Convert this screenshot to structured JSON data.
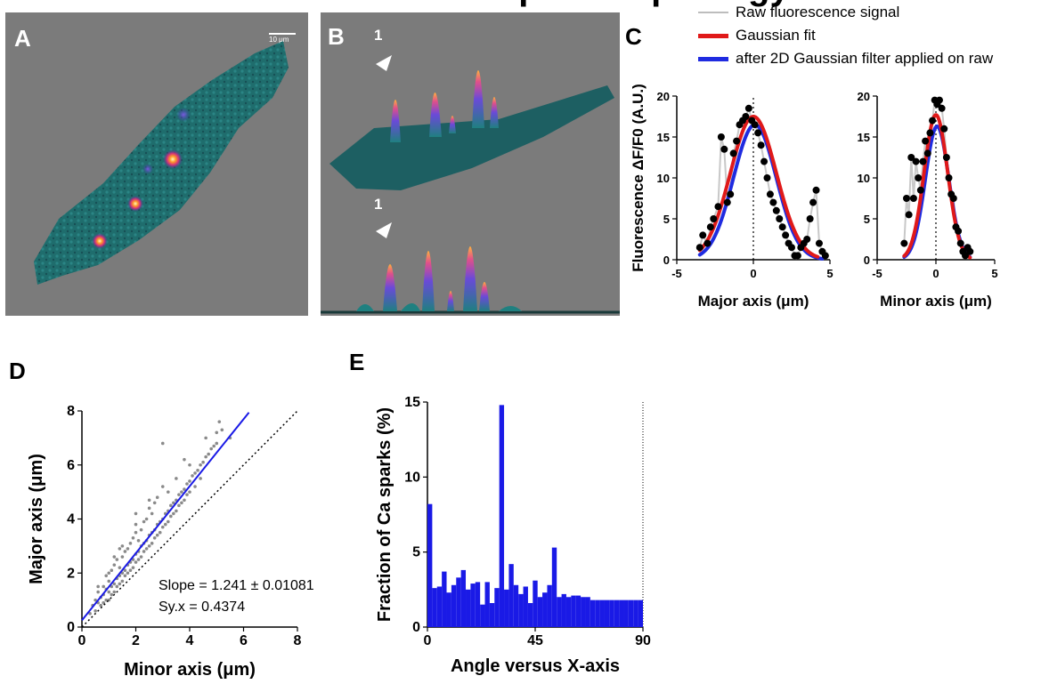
{
  "header_fragment": "spar  morphology",
  "panels": {
    "A": {
      "letter": "A",
      "scale_bar": "10 μm"
    },
    "B": {
      "letter": "B",
      "marker_top": "1",
      "marker_bottom": "1"
    },
    "C": {
      "letter": "C"
    },
    "D": {
      "letter": "D"
    },
    "E": {
      "letter": "E"
    }
  },
  "legend": {
    "items": [
      {
        "label": "Raw fluorescence  signal",
        "color": "#bdbdbd"
      },
      {
        "label": "Gaussian fit",
        "color": "#e01919"
      },
      {
        "label": "after 2D Gaussian filter applied  on raw",
        "color": "#1f2be0"
      }
    ]
  },
  "colors": {
    "raw": "#c8c8c8",
    "dots": "#000000",
    "fit": "#e01919",
    "filtered": "#1f2be0",
    "bars": "#1a1ae6",
    "scatter": "#8a8a8a",
    "regression": "#1a1ae6"
  },
  "chart_data": [
    {
      "id": "C-major",
      "type": "line",
      "ylabel": "Fluorescence ΔF/F0 (A.U.)",
      "xlabel": "Major axis (μm)",
      "xlim": [
        -5,
        5
      ],
      "ylim": [
        0,
        20
      ],
      "xticks": [
        "-5",
        "0",
        "5"
      ],
      "yticks": [
        "0",
        "5",
        "10",
        "15",
        "20"
      ],
      "series": [
        {
          "name": "Raw fluorescence  signal",
          "x": [
            -3.5,
            -3.3,
            -3.0,
            -2.8,
            -2.6,
            -2.3,
            -2.1,
            -1.9,
            -1.7,
            -1.5,
            -1.3,
            -1.1,
            -0.9,
            -0.7,
            -0.5,
            -0.3,
            -0.1,
            0.1,
            0.3,
            0.5,
            0.7,
            0.9,
            1.1,
            1.3,
            1.5,
            1.7,
            1.9,
            2.1,
            2.3,
            2.5,
            2.7,
            2.9,
            3.1,
            3.3,
            3.5,
            3.7,
            3.9,
            4.1,
            4.3,
            4.5,
            4.7
          ],
          "y": [
            1.5,
            3.0,
            2.0,
            4.0,
            5.0,
            6.5,
            15.0,
            13.5,
            7.0,
            8.0,
            13.0,
            14.5,
            16.5,
            17.0,
            17.5,
            18.5,
            17.0,
            16.5,
            15.5,
            14.0,
            12.0,
            10.0,
            8.0,
            7.0,
            6.0,
            5.0,
            4.0,
            3.0,
            2.0,
            1.5,
            0.5,
            0.5,
            1.5,
            2.0,
            2.5,
            5.0,
            7.0,
            8.5,
            2.0,
            1.0,
            0.5
          ]
        },
        {
          "name": "Gaussian fit",
          "fn": "gauss",
          "amp": 17.5,
          "mu": 0,
          "sigma": 1.5,
          "x_range": [
            -3.5,
            4.2
          ]
        },
        {
          "name": "after 2D Gaussian filter applied  on raw",
          "fn": "gauss",
          "amp": 16.5,
          "mu": 0.1,
          "sigma": 1.4,
          "x_range": [
            -3.5,
            4.5
          ]
        }
      ]
    },
    {
      "id": "C-minor",
      "type": "line",
      "xlabel": "Minor axis (μm)",
      "xlim": [
        -5,
        5
      ],
      "ylim": [
        0,
        20
      ],
      "xticks": [
        "-5",
        "0",
        "5"
      ],
      "yticks": [
        "0",
        "5",
        "10",
        "15",
        "20"
      ],
      "series": [
        {
          "name": "Raw fluorescence  signal",
          "x": [
            -2.7,
            -2.5,
            -2.3,
            -2.1,
            -1.9,
            -1.7,
            -1.5,
            -1.3,
            -1.1,
            -0.9,
            -0.7,
            -0.5,
            -0.3,
            -0.1,
            0.1,
            0.3,
            0.5,
            0.7,
            0.9,
            1.1,
            1.3,
            1.5,
            1.7,
            1.9,
            2.1,
            2.3,
            2.5,
            2.7,
            2.9
          ],
          "y": [
            2.0,
            7.5,
            5.5,
            12.5,
            7.5,
            12.0,
            10.0,
            8.5,
            12.0,
            14.5,
            13.0,
            15.5,
            17.0,
            19.5,
            19.0,
            19.5,
            18.5,
            16.0,
            12.5,
            10.0,
            8.0,
            7.5,
            4.0,
            3.5,
            2.0,
            1.0,
            0.5,
            1.5,
            1.0
          ]
        },
        {
          "name": "Gaussian fit",
          "fn": "gauss",
          "amp": 17.7,
          "mu": 0,
          "sigma": 1.0,
          "x_range": [
            -2.7,
            2.9
          ]
        },
        {
          "name": "after 2D Gaussian filter applied  on raw",
          "fn": "gauss",
          "amp": 16.3,
          "mu": 0.1,
          "sigma": 1.0,
          "x_range": [
            -2.7,
            2.9
          ]
        }
      ]
    },
    {
      "id": "D",
      "type": "scatter",
      "xlabel": "Minor axis (μm)",
      "ylabel": "Major axis (μm)",
      "xlim": [
        0,
        8
      ],
      "ylim": [
        0,
        8
      ],
      "xticks": [
        "0",
        "2",
        "4",
        "6",
        "8"
      ],
      "yticks": [
        "0",
        "2",
        "4",
        "6",
        "8"
      ],
      "regression": {
        "slope": 1.241,
        "intercept": 0.25,
        "x_range": [
          0,
          6.2
        ]
      },
      "identity_line": true,
      "annotations": [
        "Slope = 1.241 ± 0.01081",
        "Sy.x = 0.4374"
      ],
      "points": [
        [
          0.3,
          0.5
        ],
        [
          0.4,
          0.8
        ],
        [
          0.5,
          0.6
        ],
        [
          0.5,
          1.0
        ],
        [
          0.6,
          0.9
        ],
        [
          0.6,
          1.3
        ],
        [
          0.7,
          1.1
        ],
        [
          0.7,
          0.8
        ],
        [
          0.8,
          1.5
        ],
        [
          0.8,
          1.2
        ],
        [
          0.8,
          0.9
        ],
        [
          0.9,
          1.4
        ],
        [
          0.9,
          1.0
        ],
        [
          1.0,
          1.7
        ],
        [
          1.0,
          1.3
        ],
        [
          1.0,
          1.0
        ],
        [
          1.0,
          2.0
        ],
        [
          1.1,
          1.5
        ],
        [
          1.1,
          1.2
        ],
        [
          1.1,
          2.1
        ],
        [
          1.2,
          1.6
        ],
        [
          1.2,
          1.3
        ],
        [
          1.2,
          2.3
        ],
        [
          1.3,
          1.8
        ],
        [
          1.3,
          1.5
        ],
        [
          1.3,
          2.5
        ],
        [
          1.4,
          1.9
        ],
        [
          1.4,
          1.6
        ],
        [
          1.4,
          2.2
        ],
        [
          1.5,
          2.0
        ],
        [
          1.5,
          1.7
        ],
        [
          1.5,
          2.6
        ],
        [
          1.5,
          3.0
        ],
        [
          1.6,
          2.1
        ],
        [
          1.6,
          1.9
        ],
        [
          1.6,
          2.8
        ],
        [
          1.7,
          2.3
        ],
        [
          1.7,
          2.0
        ],
        [
          1.7,
          2.9
        ],
        [
          1.8,
          2.4
        ],
        [
          1.8,
          2.1
        ],
        [
          1.8,
          3.1
        ],
        [
          1.9,
          2.5
        ],
        [
          1.9,
          2.2
        ],
        [
          1.9,
          3.3
        ],
        [
          2.0,
          2.7
        ],
        [
          2.0,
          2.4
        ],
        [
          2.0,
          3.5
        ],
        [
          2.0,
          4.2
        ],
        [
          2.1,
          2.8
        ],
        [
          2.1,
          2.5
        ],
        [
          2.1,
          3.2
        ],
        [
          2.2,
          3.0
        ],
        [
          2.2,
          2.6
        ],
        [
          2.2,
          3.6
        ],
        [
          2.3,
          3.1
        ],
        [
          2.3,
          2.8
        ],
        [
          2.3,
          3.9
        ],
        [
          2.4,
          3.2
        ],
        [
          2.4,
          2.9
        ],
        [
          2.4,
          4.0
        ],
        [
          2.5,
          3.4
        ],
        [
          2.5,
          3.0
        ],
        [
          2.5,
          4.4
        ],
        [
          2.6,
          3.5
        ],
        [
          2.6,
          3.1
        ],
        [
          2.6,
          4.2
        ],
        [
          2.7,
          3.6
        ],
        [
          2.7,
          3.3
        ],
        [
          2.8,
          3.8
        ],
        [
          2.8,
          3.4
        ],
        [
          2.8,
          4.8
        ],
        [
          2.9,
          3.9
        ],
        [
          2.9,
          3.5
        ],
        [
          3.0,
          4.0
        ],
        [
          3.0,
          3.7
        ],
        [
          3.0,
          5.2
        ],
        [
          3.0,
          6.8
        ],
        [
          3.1,
          4.2
        ],
        [
          3.1,
          3.8
        ],
        [
          3.2,
          4.3
        ],
        [
          3.2,
          3.9
        ],
        [
          3.2,
          5.0
        ],
        [
          3.3,
          4.5
        ],
        [
          3.3,
          4.1
        ],
        [
          3.4,
          4.6
        ],
        [
          3.4,
          4.2
        ],
        [
          3.5,
          4.7
        ],
        [
          3.5,
          4.3
        ],
        [
          3.5,
          5.5
        ],
        [
          3.6,
          4.9
        ],
        [
          3.6,
          4.5
        ],
        [
          3.7,
          5.0
        ],
        [
          3.7,
          4.6
        ],
        [
          3.8,
          5.1
        ],
        [
          3.8,
          4.7
        ],
        [
          3.9,
          5.3
        ],
        [
          3.9,
          4.9
        ],
        [
          4.0,
          5.4
        ],
        [
          4.0,
          5.0
        ],
        [
          4.0,
          6.0
        ],
        [
          4.1,
          5.6
        ],
        [
          4.2,
          5.7
        ],
        [
          4.2,
          5.2
        ],
        [
          4.3,
          5.8
        ],
        [
          4.4,
          6.0
        ],
        [
          4.4,
          5.5
        ],
        [
          4.5,
          6.1
        ],
        [
          4.6,
          6.3
        ],
        [
          4.7,
          6.4
        ],
        [
          4.8,
          6.6
        ],
        [
          4.9,
          6.7
        ],
        [
          5.0,
          6.8
        ],
        [
          5.0,
          7.2
        ],
        [
          5.2,
          7.3
        ],
        [
          5.5,
          7.0
        ],
        [
          5.1,
          7.6
        ],
        [
          4.6,
          7.0
        ],
        [
          3.8,
          6.2
        ],
        [
          2.7,
          4.6
        ],
        [
          1.2,
          2.6
        ],
        [
          0.9,
          1.9
        ],
        [
          0.6,
          1.5
        ],
        [
          1.4,
          2.9
        ],
        [
          2.0,
          3.8
        ],
        [
          2.5,
          4.7
        ]
      ]
    },
    {
      "id": "E",
      "type": "bar",
      "xlabel": "Angle versus X-axis",
      "ylabel": "Fraction of Ca sparks (%)",
      "xlim": [
        0,
        90
      ],
      "ylim": [
        0,
        15
      ],
      "xticks": [
        "0",
        "45",
        "90"
      ],
      "yticks": [
        "0",
        "5",
        "10",
        "15"
      ],
      "bin_width": 2,
      "values": [
        8.2,
        2.6,
        2.7,
        3.7,
        2.3,
        2.8,
        3.3,
        3.8,
        2.5,
        2.9,
        3.0,
        1.5,
        3.0,
        1.6,
        2.6,
        14.8,
        2.5,
        4.2,
        2.8,
        2.2,
        2.7,
        1.6,
        3.1,
        2.0,
        2.3,
        2.8,
        5.3,
        2.0,
        2.2,
        2.0,
        2.1,
        2.1,
        2.0,
        2.0,
        1.8,
        1.8,
        1.8,
        1.8,
        1.8,
        1.8,
        1.8,
        1.8,
        1.8,
        1.8,
        1.8
      ]
    }
  ]
}
